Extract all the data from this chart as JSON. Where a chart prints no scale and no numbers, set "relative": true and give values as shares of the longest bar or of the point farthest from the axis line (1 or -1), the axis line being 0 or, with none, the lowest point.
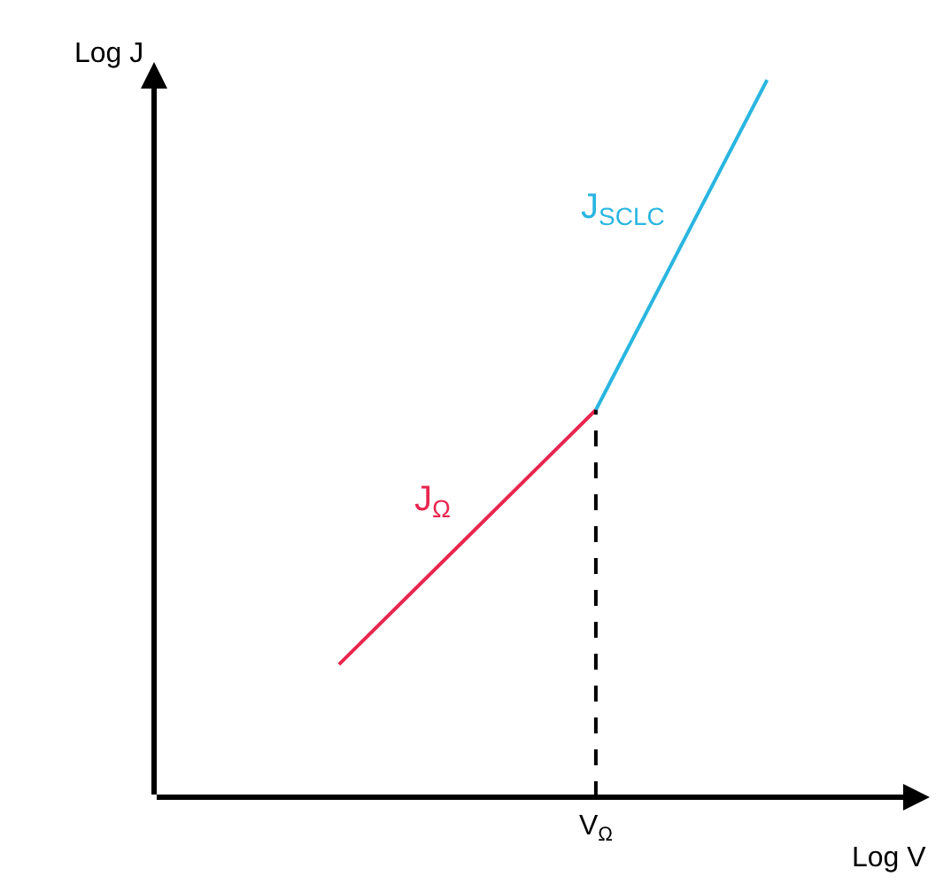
{
  "chart_data": {
    "type": "line",
    "relative": true,
    "xlabel": "Log V",
    "annotations": [
      "Log J"
    ],
    "tick_labels": false,
    "marker": "none",
    "line_style": "solid",
    "categories": [
      null,
      null,
      null,
      null,
      null,
      null
    ],
    "series": [
      {
        "name": "J$_{Ω}$",
        "color": "#e8264f",
        "values": [
          0.185,
          null,
          null,
          0.54,
          null,
          null
        ]
      },
      {
        "name": "J$_{SCLC}$",
        "color": "#29b6e0",
        "values": [
          null,
          null,
          null,
          0.54,
          null,
          1
        ]
      }
    ],
    "ref_lines": [
      {
        "axis": "x",
        "label": "V$_{Ω}$",
        "color": "#000000",
        "line_style": "dashed"
      }
    ]
  }
}
